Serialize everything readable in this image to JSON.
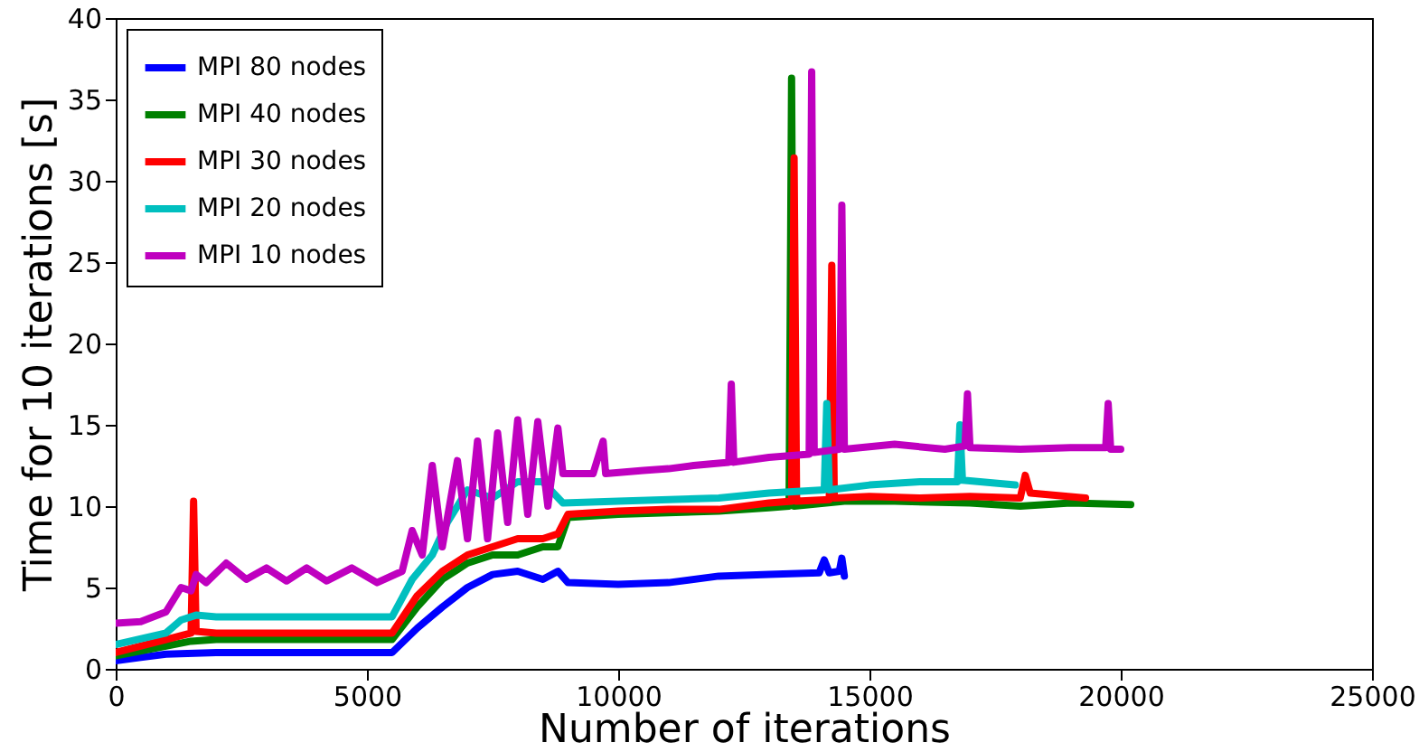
{
  "chart_data": {
    "type": "line",
    "xlabel": "Number of iterations",
    "ylabel": "Time for 10 iterations [s]",
    "xlim": [
      0,
      25000
    ],
    "xticks": [
      0,
      5000,
      10000,
      15000,
      20000,
      25000
    ],
    "ylim": [
      0,
      40
    ],
    "yticks": [
      0,
      5,
      10,
      15,
      20,
      25,
      30,
      35,
      40
    ],
    "grid": false,
    "legend": "top left",
    "marker": "none",
    "line_style": "solid",
    "series": [
      {
        "name": "MPI 80 nodes",
        "color": "#0000ff",
        "x": [
          0,
          500,
          1000,
          2000,
          5500,
          6000,
          6500,
          7000,
          7500,
          8000,
          8500,
          8800,
          9000,
          10000,
          11000,
          12000,
          13000,
          14000,
          14100,
          14200,
          14400,
          14450,
          14500
        ],
        "values": [
          0.5,
          0.7,
          0.9,
          1,
          1,
          2.5,
          3.8,
          5,
          5.8,
          6,
          5.5,
          6,
          5.3,
          5.2,
          5.3,
          5.7,
          5.8,
          5.9,
          6.7,
          5.9,
          6,
          6.8,
          5.7
        ]
      },
      {
        "name": "MPI 40 nodes",
        "color": "#008000",
        "x": [
          0,
          1000,
          1500,
          2000,
          5500,
          6000,
          6500,
          7000,
          7500,
          8000,
          8500,
          8800,
          9000,
          10000,
          11000,
          12000,
          13000,
          13400,
          13450,
          13500,
          14500,
          15500,
          17000,
          18000,
          19000,
          20200
        ],
        "values": [
          0.8,
          1.4,
          1.7,
          1.8,
          1.8,
          3.8,
          5.5,
          6.5,
          7,
          7,
          7.5,
          7.5,
          9.3,
          9.5,
          9.6,
          9.7,
          9.9,
          10,
          36.3,
          10,
          10.3,
          10.3,
          10.2,
          10,
          10.2,
          10.1
        ]
      },
      {
        "name": "MPI 30 nodes",
        "color": "#ff0000",
        "x": [
          0,
          1000,
          1500,
          1550,
          1600,
          2000,
          5500,
          6000,
          6500,
          7000,
          7500,
          8000,
          8500,
          8800,
          9000,
          10000,
          11000,
          12000,
          13000,
          13450,
          13500,
          13550,
          14200,
          14250,
          14300,
          15000,
          16000,
          17000,
          18000,
          18100,
          18200,
          19300
        ],
        "values": [
          1,
          1.8,
          2.2,
          10.3,
          2.3,
          2.2,
          2.2,
          4.5,
          6,
          7,
          7.5,
          8,
          8,
          8.3,
          9.5,
          9.7,
          9.8,
          9.8,
          10.2,
          10.3,
          31.4,
          10.3,
          10.4,
          24.8,
          10.5,
          10.6,
          10.5,
          10.6,
          10.5,
          11.9,
          10.8,
          10.5
        ]
      },
      {
        "name": "MPI 20 nodes",
        "color": "#00bfbf",
        "x": [
          0,
          1000,
          1300,
          1600,
          2000,
          5500,
          5900,
          6300,
          6600,
          7000,
          7500,
          8000,
          8500,
          8900,
          10000,
          12000,
          13000,
          14100,
          14150,
          14200,
          15000,
          16000,
          16750,
          16800,
          16850,
          17900
        ],
        "values": [
          1.5,
          2.2,
          3,
          3.3,
          3.2,
          3.2,
          5.5,
          7,
          9,
          11,
          10.5,
          11.5,
          11.5,
          10.2,
          10.3,
          10.5,
          10.8,
          11,
          16.3,
          11,
          11.3,
          11.5,
          11.5,
          15,
          11.6,
          11.3
        ]
      },
      {
        "name": "MPI 10 nodes",
        "color": "#bf00bf",
        "x": [
          0,
          500,
          1000,
          1300,
          1500,
          1600,
          1800,
          2200,
          2600,
          3000,
          3400,
          3800,
          4200,
          4700,
          5200,
          5700,
          5900,
          6100,
          6300,
          6500,
          6800,
          7000,
          7200,
          7400,
          7600,
          7800,
          8000,
          8200,
          8400,
          8600,
          8800,
          8900,
          9500,
          9700,
          9750,
          10500,
          11000,
          11500,
          12200,
          12250,
          12300,
          13000,
          13800,
          13850,
          13900,
          14400,
          14450,
          14500,
          15500,
          16500,
          16900,
          16950,
          17000,
          18000,
          19000,
          19700,
          19750,
          19800,
          20000
        ],
        "values": [
          2.8,
          2.9,
          3.5,
          5,
          4.8,
          5.8,
          5.3,
          6.5,
          5.5,
          6.2,
          5.4,
          6.2,
          5.4,
          6.2,
          5.3,
          6,
          8.5,
          7,
          12.5,
          7.5,
          12.8,
          8,
          14,
          8,
          14.5,
          9,
          15.3,
          9.5,
          15.2,
          10,
          14.8,
          12,
          12,
          14,
          12,
          12.2,
          12.3,
          12.5,
          12.7,
          17.5,
          12.7,
          13,
          13.2,
          36.7,
          13.3,
          13.5,
          28.5,
          13.5,
          13.8,
          13.5,
          13.7,
          16.9,
          13.6,
          13.5,
          13.6,
          13.6,
          16.3,
          13.5,
          13.5
        ]
      }
    ]
  }
}
